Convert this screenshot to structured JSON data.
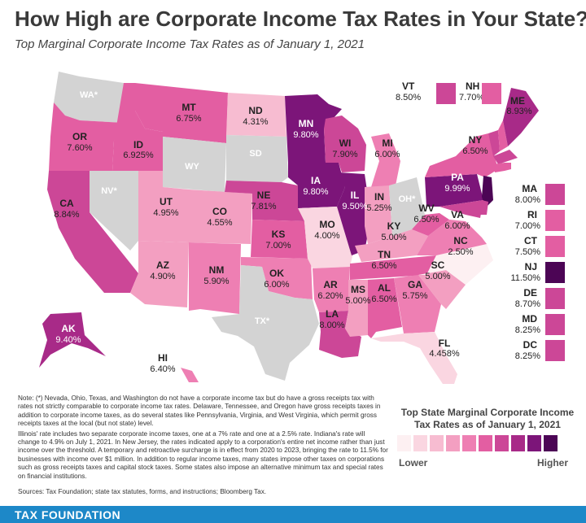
{
  "title": "How High are Corporate Income Tax Rates in Your State?",
  "subtitle": "Top Marginal Corporate Income Tax Rates as of January 1, 2021",
  "colors": {
    "no_tax": "#d3d3d3",
    "scale": [
      "#fdf0f2",
      "#fad6e1",
      "#f7bcd1",
      "#f39fc1",
      "#ee7fb3",
      "#e35ea2",
      "#cc4797",
      "#a82a88",
      "#7c1579",
      "#4c0555"
    ],
    "footer": "#1d88c8"
  },
  "states": [
    {
      "abbr": "WA*",
      "rate": ""
    },
    {
      "abbr": "OR",
      "rate": "7.60%"
    },
    {
      "abbr": "CA",
      "rate": "8.84%"
    },
    {
      "abbr": "NV*",
      "rate": ""
    },
    {
      "abbr": "ID",
      "rate": "6.925%"
    },
    {
      "abbr": "MT",
      "rate": "6.75%"
    },
    {
      "abbr": "WY",
      "rate": ""
    },
    {
      "abbr": "UT",
      "rate": "4.95%"
    },
    {
      "abbr": "AZ",
      "rate": "4.90%"
    },
    {
      "abbr": "CO",
      "rate": "4.55%"
    },
    {
      "abbr": "NM",
      "rate": "5.90%"
    },
    {
      "abbr": "ND",
      "rate": "4.31%"
    },
    {
      "abbr": "SD",
      "rate": ""
    },
    {
      "abbr": "NE",
      "rate": "7.81%"
    },
    {
      "abbr": "KS",
      "rate": "7.00%"
    },
    {
      "abbr": "OK",
      "rate": "6.00%"
    },
    {
      "abbr": "TX*",
      "rate": ""
    },
    {
      "abbr": "MN",
      "rate": "9.80%"
    },
    {
      "abbr": "IA",
      "rate": "9.80%"
    },
    {
      "abbr": "MO",
      "rate": "4.00%"
    },
    {
      "abbr": "AR",
      "rate": "6.20%"
    },
    {
      "abbr": "LA",
      "rate": "8.00%"
    },
    {
      "abbr": "WI",
      "rate": "7.90%"
    },
    {
      "abbr": "IL",
      "rate": "9.50%"
    },
    {
      "abbr": "MI",
      "rate": "6.00%"
    },
    {
      "abbr": "IN",
      "rate": "5.25%"
    },
    {
      "abbr": "OH*",
      "rate": ""
    },
    {
      "abbr": "KY",
      "rate": "5.00%"
    },
    {
      "abbr": "TN",
      "rate": "6.50%"
    },
    {
      "abbr": "MS",
      "rate": "5.00%"
    },
    {
      "abbr": "AL",
      "rate": "6.50%"
    },
    {
      "abbr": "GA",
      "rate": "5.75%"
    },
    {
      "abbr": "FL",
      "rate": "4.458%"
    },
    {
      "abbr": "SC",
      "rate": "5.00%"
    },
    {
      "abbr": "NC",
      "rate": "2.50%"
    },
    {
      "abbr": "VA",
      "rate": "6.00%"
    },
    {
      "abbr": "WV",
      "rate": "6.50%"
    },
    {
      "abbr": "PA",
      "rate": "9.99%"
    },
    {
      "abbr": "NY",
      "rate": "6.50%"
    },
    {
      "abbr": "ME",
      "rate": "8.93%"
    },
    {
      "abbr": "AK",
      "rate": "9.40%"
    },
    {
      "abbr": "HI",
      "rate": "6.40%"
    }
  ],
  "northeast_boxes": [
    {
      "abbr": "VT",
      "rate": "8.50%"
    },
    {
      "abbr": "NH",
      "rate": "7.70%"
    }
  ],
  "side_boxes": [
    {
      "abbr": "MA",
      "rate": "8.00%"
    },
    {
      "abbr": "RI",
      "rate": "7.00%"
    },
    {
      "abbr": "CT",
      "rate": "7.50%"
    },
    {
      "abbr": "NJ",
      "rate": "11.50%"
    },
    {
      "abbr": "DE",
      "rate": "8.70%"
    },
    {
      "abbr": "MD",
      "rate": "8.25%"
    },
    {
      "abbr": "DC",
      "rate": "8.25%"
    }
  ],
  "note": [
    "Note: (*) Nevada, Ohio, Texas, and Washington do not have a corporate income tax but do have a gross receipts tax with rates not strictly comparable to corporate income tax rates. Delaware, Tennessee, and Oregon have gross receipts taxes in addition to corporate income taxes, as do several states like Pennsylvania, Virginia, and West Virginia, which permit gross receipts taxes at the local (but not state) level.",
    "Illinois' rate includes two separate corporate income taxes, one at a 7% rate and one at a 2.5% rate. Indiana's rate will change to 4.9% on July 1, 2021. In New Jersey, the rates indicated apply to a corporation's entire net income rather than just income over the threshold. A temporary and retroactive surcharge is in effect from 2020 to 2023, bringing the rate to 11.5% for businesses with income over $1 million. In addition to regular income taxes, many states impose other taxes on corporations such as gross receipts taxes and capital stock taxes. Some states also impose an alternative minimum tax and special rates on financial institutions."
  ],
  "sources": "Sources: Tax Foundation; state tax statutes, forms, and instructions; Bloomberg Tax.",
  "legend": {
    "title": "Top State Marginal Corporate Income Tax Rates as of January 1, 2021",
    "lower": "Lower",
    "higher": "Higher"
  },
  "footer": "TAX FOUNDATION"
}
